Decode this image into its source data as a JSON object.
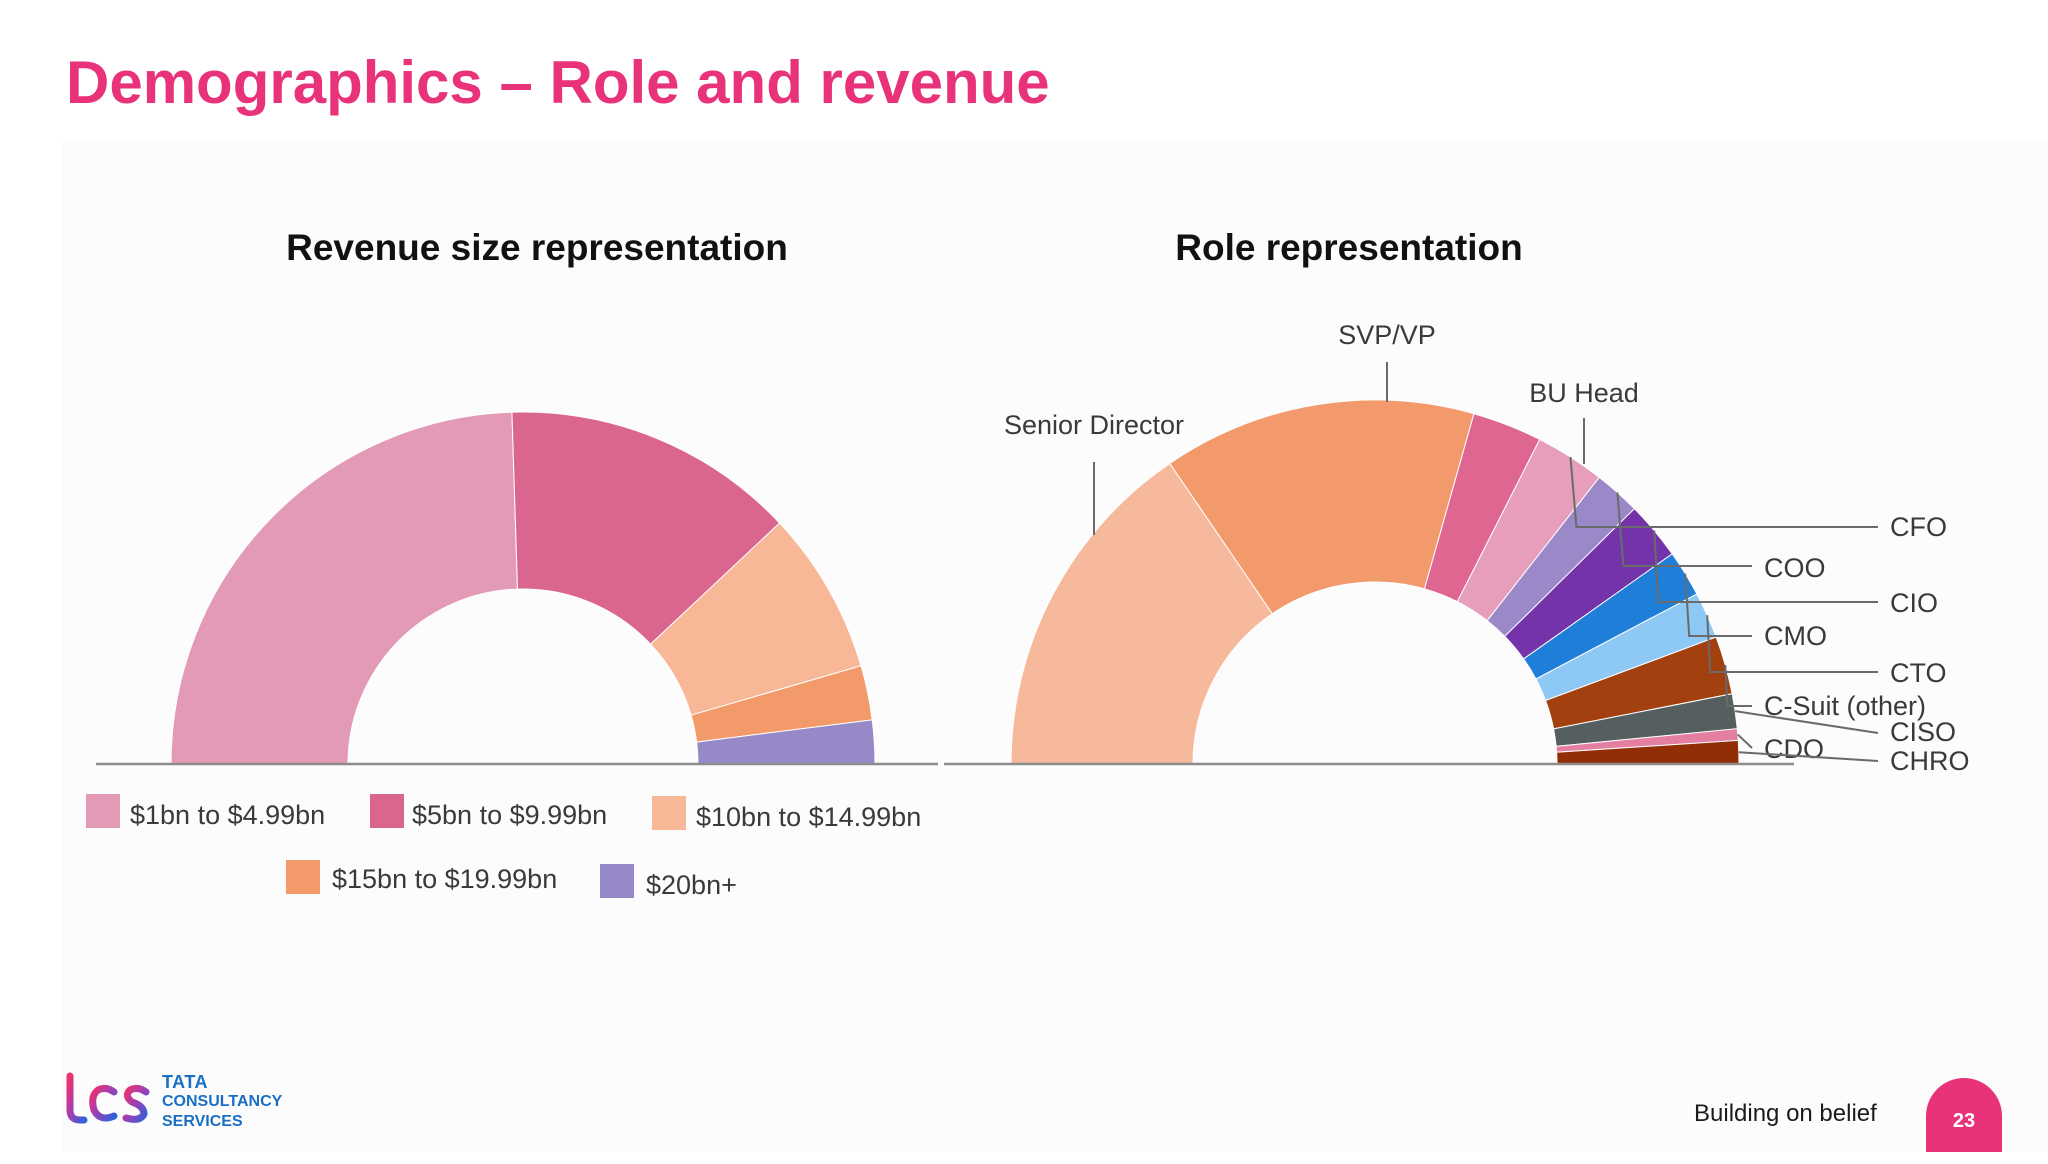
{
  "page": {
    "title": "Demographics – Role and revenue",
    "tagline": "Building on belief",
    "page_number": "23",
    "logo": {
      "mark": "tcs",
      "line1": "TATA",
      "line2": "CONSULTANCY",
      "line3": "SERVICES"
    }
  },
  "colors": {
    "title": "#e8337a",
    "badge": "#e8337a"
  },
  "chart_data": [
    {
      "type": "pie",
      "variant": "half-donut",
      "title": "Revenue size representation",
      "legend_placement": "bottom",
      "categories": [
        "$1bn to $4.99bn",
        "$5bn to $9.99bn",
        "$10bn to $14.99bn",
        "$15bn to $19.99bn",
        "$20bn+"
      ],
      "values": [
        49,
        27,
        15,
        5,
        4
      ],
      "colors": [
        "#e39ab6",
        "#da668f",
        "#f8b898",
        "#f29a69",
        "#9788c8"
      ]
    },
    {
      "type": "pie",
      "variant": "half-donut",
      "title": "Role representation",
      "legend_placement": "leader-lines",
      "categories": [
        "Senior Director",
        "SVP/VP",
        "BU Head",
        "CFO",
        "COO",
        "CIO",
        "CMO",
        "CTO",
        "C-Suit (other)",
        "CISO",
        "CDO",
        "CHRO"
      ],
      "values": [
        30,
        27,
        6,
        6,
        4,
        5,
        4,
        4,
        5,
        3,
        1,
        2
      ],
      "colors": [
        "#f7b99b",
        "#f29a6c",
        "#de6691",
        "#e69ebb",
        "#9a88c8",
        "#7433a8",
        "#1f7ed8",
        "#8ec8f4",
        "#a2400f",
        "#555f5f",
        "#e57fa1",
        "#922e06"
      ]
    }
  ]
}
